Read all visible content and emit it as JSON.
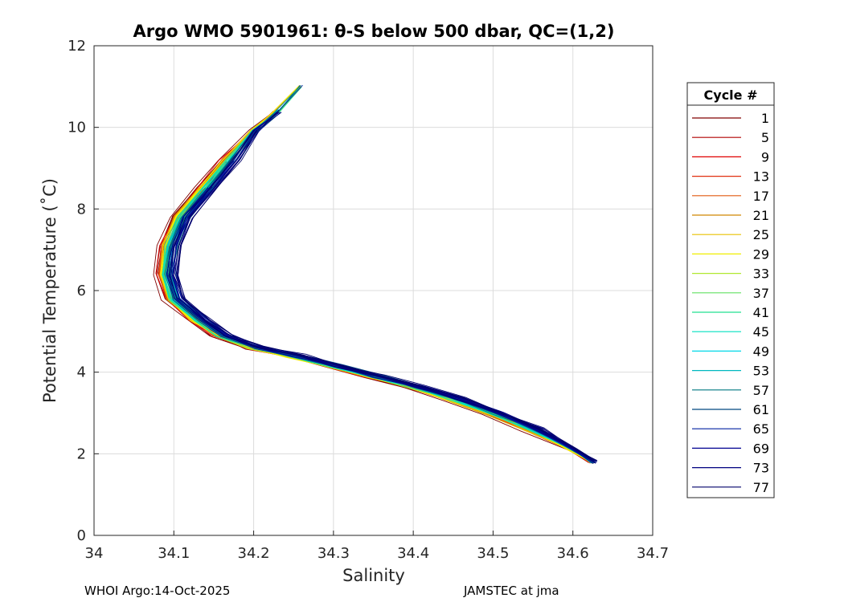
{
  "chart_data": {
    "type": "line",
    "title": "Argo WMO 5901961: θ-S below 500 dbar,  QC=(1,2)",
    "xlabel": "Salinity",
    "ylabel": "Potential Temperature (˚C)",
    "xlim": [
      34.0,
      34.7
    ],
    "ylim": [
      0,
      12
    ],
    "xticks": [
      34.0,
      34.1,
      34.2,
      34.3,
      34.4,
      34.5,
      34.6,
      34.7
    ],
    "xtick_labels": [
      "34",
      "34.1",
      "34.2",
      "34.3",
      "34.4",
      "34.5",
      "34.6",
      "34.7"
    ],
    "yticks": [
      0,
      2,
      4,
      6,
      8,
      10,
      12
    ],
    "ytick_labels": [
      "0",
      "2",
      "4",
      "6",
      "8",
      "10",
      "12"
    ],
    "grid": true,
    "legend_title": "Cycle #",
    "legend_position": "outside-right",
    "series": [
      {
        "name": "1",
        "color": "#800000"
      },
      {
        "name": "5",
        "color": "#b00000"
      },
      {
        "name": "9",
        "color": "#e00000"
      },
      {
        "name": "13",
        "color": "#e03010"
      },
      {
        "name": "17",
        "color": "#e05a10"
      },
      {
        "name": "21",
        "color": "#d08800"
      },
      {
        "name": "25",
        "color": "#e8c000"
      },
      {
        "name": "29",
        "color": "#f0ee00"
      },
      {
        "name": "33",
        "color": "#b0e830"
      },
      {
        "name": "37",
        "color": "#60e060"
      },
      {
        "name": "41",
        "color": "#20e090"
      },
      {
        "name": "45",
        "color": "#00e0c0"
      },
      {
        "name": "49",
        "color": "#00d8e8"
      },
      {
        "name": "53",
        "color": "#00b8c0"
      },
      {
        "name": "57",
        "color": "#007880"
      },
      {
        "name": "61",
        "color": "#004880"
      },
      {
        "name": "65",
        "color": "#0020a0"
      },
      {
        "name": "69",
        "color": "#000090"
      },
      {
        "name": "73",
        "color": "#000080"
      },
      {
        "name": "77",
        "color": "#00006a"
      }
    ],
    "profile_base": {
      "salinity": [
        34.625,
        34.6,
        34.55,
        34.5,
        34.45,
        34.4,
        34.35,
        34.3,
        34.25,
        34.2,
        34.16,
        34.13,
        34.1,
        34.09,
        34.095,
        34.11,
        34.14,
        34.17,
        34.2,
        34.23,
        34.26
      ],
      "temperature": [
        1.8,
        2.1,
        2.6,
        3.0,
        3.35,
        3.65,
        3.9,
        4.15,
        4.4,
        4.6,
        4.9,
        5.3,
        5.8,
        6.4,
        7.1,
        7.8,
        8.5,
        9.2,
        9.9,
        10.4,
        11.0
      ]
    }
  },
  "footer": {
    "left": "WHOI Argo:14-Oct-2025",
    "right": "JAMSTEC at jma"
  }
}
